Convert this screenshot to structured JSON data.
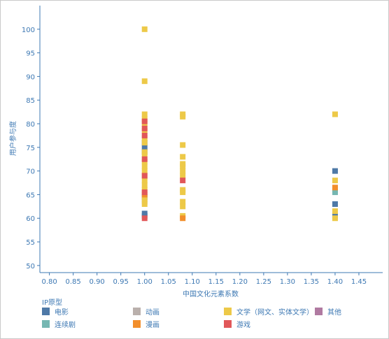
{
  "chart_data": {
    "type": "scatter",
    "xlabel": "中国文化元素系数",
    "ylabel": "用户参与度",
    "xlim": [
      0.78,
      1.5
    ],
    "ylim": [
      48.5,
      105
    ],
    "x_ticks": [
      0.8,
      0.85,
      0.9,
      0.95,
      1.0,
      1.05,
      1.1,
      1.15,
      1.2,
      1.25,
      1.3,
      1.35,
      1.4,
      1.45
    ],
    "y_ticks": [
      50,
      55,
      60,
      65,
      70,
      75,
      80,
      85,
      90,
      95,
      100
    ],
    "grid": false,
    "legend_title": "IP原型",
    "legend_position": "bottom",
    "series": [
      {
        "name": "电影",
        "color": "#4e79a7",
        "points": [
          [
            1.0,
            76
          ],
          [
            1.0,
            75
          ],
          [
            1.0,
            74
          ],
          [
            1.0,
            64.5
          ],
          [
            1.0,
            61
          ],
          [
            1.0,
            60.5
          ],
          [
            1.4,
            70
          ],
          [
            1.4,
            63
          ],
          [
            1.4,
            60.5
          ]
        ]
      },
      {
        "name": "动画",
        "color": "#bab0ac",
        "points": [
          [
            1.0,
            63.5
          ]
        ]
      },
      {
        "name": "文学（网文、实体文学）",
        "color": "#edc948",
        "points": [
          [
            1.0,
            100
          ],
          [
            1.0,
            89
          ],
          [
            1.0,
            82
          ],
          [
            1.0,
            81
          ],
          [
            1.0,
            80
          ],
          [
            1.0,
            78.5
          ],
          [
            1.0,
            77
          ],
          [
            1.0,
            76
          ],
          [
            1.0,
            74
          ],
          [
            1.0,
            73.5
          ],
          [
            1.0,
            72
          ],
          [
            1.0,
            71
          ],
          [
            1.0,
            70
          ],
          [
            1.0,
            69
          ],
          [
            1.0,
            68
          ],
          [
            1.0,
            67
          ],
          [
            1.0,
            66
          ],
          [
            1.0,
            64
          ],
          [
            1.0,
            63
          ],
          [
            1.08,
            82
          ],
          [
            1.08,
            81.5
          ],
          [
            1.08,
            75.5
          ],
          [
            1.08,
            73
          ],
          [
            1.08,
            71.5
          ],
          [
            1.08,
            71
          ],
          [
            1.08,
            70
          ],
          [
            1.08,
            69
          ],
          [
            1.08,
            66
          ],
          [
            1.08,
            65.5
          ],
          [
            1.08,
            63.5
          ],
          [
            1.08,
            62.5
          ],
          [
            1.08,
            60.5
          ],
          [
            1.4,
            82
          ],
          [
            1.4,
            68
          ],
          [
            1.4,
            66
          ],
          [
            1.4,
            61.5
          ],
          [
            1.4,
            60
          ]
        ]
      },
      {
        "name": "其他",
        "color": "#b07aa1",
        "points": []
      },
      {
        "name": "连续剧",
        "color": "#76b7b2",
        "points": [
          [
            1.4,
            65.5
          ]
        ]
      },
      {
        "name": "漫画",
        "color": "#f28e2b",
        "points": [
          [
            1.0,
            65
          ],
          [
            1.08,
            60
          ],
          [
            1.4,
            66.5
          ]
        ]
      },
      {
        "name": "游戏",
        "color": "#e15759",
        "points": [
          [
            1.0,
            80.5
          ],
          [
            1.0,
            79
          ],
          [
            1.0,
            77.5
          ],
          [
            1.0,
            72.5
          ],
          [
            1.0,
            69
          ],
          [
            1.0,
            65.5
          ],
          [
            1.0,
            60
          ],
          [
            1.08,
            68
          ]
        ]
      }
    ]
  }
}
